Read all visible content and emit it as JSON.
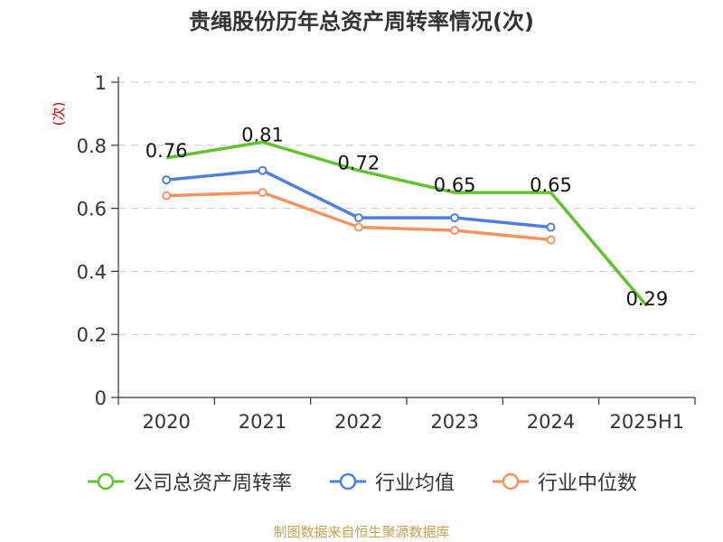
{
  "chart_data": {
    "type": "line",
    "title": "贵绳股份历年总资产周转率情况(次)",
    "ylabel": "(次)",
    "xlabel": "",
    "categories": [
      "2020",
      "2021",
      "2022",
      "2023",
      "2024",
      "2025H1"
    ],
    "ylim": [
      0,
      1
    ],
    "yticks": [
      "0",
      "0.2",
      "0.4",
      "0.6",
      "0.8",
      "1"
    ],
    "grid": true,
    "legend_position": "bottom",
    "series": [
      {
        "name": "公司总资产周转率",
        "color": "#5ec32c",
        "values": [
          0.76,
          0.81,
          0.72,
          0.65,
          0.65,
          0.29
        ],
        "labels": [
          "0.76",
          "0.81",
          "0.72",
          "0.65",
          "0.65",
          "0.29"
        ],
        "show_labels": true,
        "markers": false
      },
      {
        "name": "行业均值",
        "color": "#4d80de",
        "values": [
          0.69,
          0.72,
          0.57,
          0.57,
          0.54,
          null
        ],
        "show_labels": false,
        "markers": true
      },
      {
        "name": "行业中位数",
        "color": "#f7935e",
        "values": [
          0.64,
          0.65,
          0.54,
          0.53,
          0.5,
          null
        ],
        "show_labels": false,
        "markers": true
      }
    ]
  },
  "source": "制图数据来自恒生聚源数据库"
}
